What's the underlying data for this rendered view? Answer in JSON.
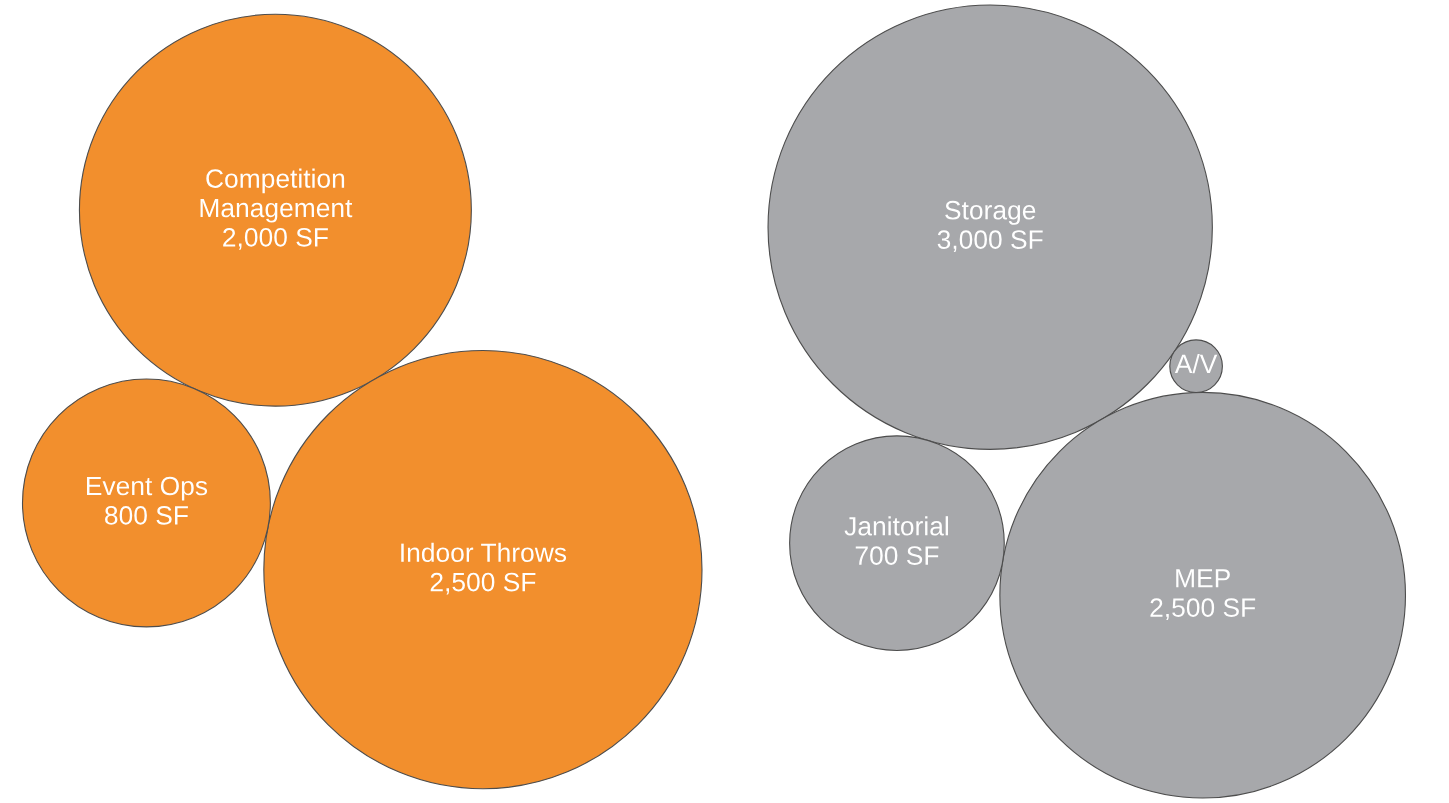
{
  "chart_data": [
    {
      "type": "other",
      "categories": [
        "Competition\nManagement",
        "Indoor Throws",
        "Event Ops"
      ],
      "values": [
        2000,
        2500,
        800
      ],
      "value_labels": [
        "2,000 SF",
        "2,500 SF",
        "800 SF"
      ],
      "colors": [
        "#f28f2d",
        "#f28f2d",
        "#f28f2d"
      ]
    },
    {
      "type": "other",
      "categories": [
        "Storage",
        "MEP",
        "Janitorial",
        "A/V"
      ],
      "values": [
        3000,
        2500,
        700,
        null
      ],
      "value_labels": [
        "3,000 SF",
        "2,500 SF",
        "700 SF",
        null
      ],
      "colors": [
        "#a7a8ab",
        "#a7a8ab",
        "#a7a8ab",
        "#a7a8ab"
      ]
    }
  ]
}
